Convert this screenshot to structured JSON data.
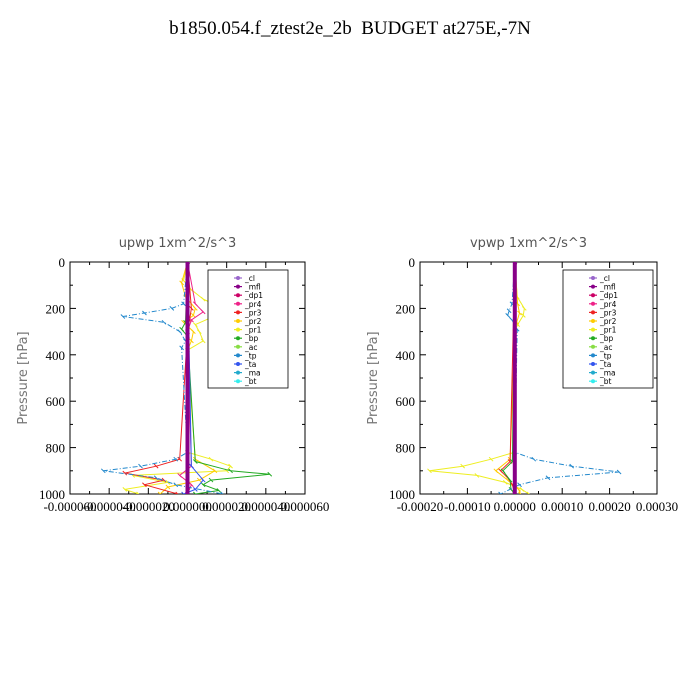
{
  "title": "b1850.054.f_ztest2e_2b  BUDGET at275E,-7N",
  "colors": {
    "_cl": "#9966cc",
    "_mfl": "#880088",
    "_dp1": "#cc0066",
    "_pr4": "#ee2288",
    "_pr3": "#ee2222",
    "_pr2": "#ffcc00",
    "_pr1": "#eeee22",
    "_bp": "#22aa22",
    "_ac": "#88dd44",
    "_tp": "#2288cc",
    "_ta": "#3355ee",
    "_ma": "#22aacc",
    "_bt": "#33eeee"
  },
  "chart_data": [
    {
      "type": "line",
      "title": "upwp   1xm^2/s^3",
      "ylabel": "Pressure [hPa]",
      "xlabel": "",
      "xlim": [
        -6e-05,
        6e-05
      ],
      "ylim": [
        1000,
        0
      ],
      "x_ticks": [
        "-0.000060",
        "-0.000040",
        "-0.000020",
        "0.000000",
        "0.000020",
        "0.000040",
        "0.000060"
      ],
      "x_tick_values": [
        -6e-05,
        -4e-05,
        -2e-05,
        0,
        2e-05,
        4e-05,
        6e-05
      ],
      "y_ticks": [
        "0",
        "200",
        "400",
        "600",
        "800",
        "1000"
      ],
      "y_tick_values": [
        0,
        200,
        400,
        600,
        800,
        1000
      ],
      "legend": [
        "_cl",
        "_mfl",
        "_dp1",
        "_pr4",
        "_pr3",
        "_pr2",
        "_pr1",
        "_bp",
        "_ac",
        "_tp",
        "_ta",
        "_ma",
        "_bt"
      ],
      "series": [
        {
          "name": "_pr1",
          "pressure": [
            0,
            80,
            120,
            160,
            200,
            240,
            270,
            300,
            340,
            380,
            820,
            850,
            880,
            900,
            920,
            950,
            980,
            1000
          ],
          "x": [
            0,
            -2e-06,
            2e-06,
            8e-06,
            1.8e-05,
            1.2e-05,
            4e-06,
            6e-06,
            8e-06,
            0,
            0,
            1.2e-05,
            2.2e-05,
            2e-05,
            -2.8e-05,
            -1e-05,
            -3.2e-05,
            -2.5e-05
          ]
        },
        {
          "name": "_pr2",
          "pressure": [
            0,
            90,
            150,
            200,
            230,
            260,
            300,
            340,
            380,
            850,
            900,
            940,
            970,
            1000
          ],
          "x": [
            0,
            -3e-06,
            -1e-06,
            4e-06,
            3e-06,
            -2e-06,
            3e-06,
            2e-06,
            0,
            4e-06,
            1.4e-05,
            6e-06,
            -1e-05,
            -1.4e-05
          ]
        },
        {
          "name": "_pr3",
          "pressure": [
            0,
            200,
            250,
            300,
            850,
            880,
            910,
            940,
            960,
            1000
          ],
          "x": [
            0,
            2e-06,
            1e-06,
            0,
            -4e-06,
            -1.6e-05,
            -3.2e-05,
            -1.2e-05,
            -2.2e-05,
            -5e-06
          ]
        },
        {
          "name": "_pr4",
          "pressure": [
            0,
            180,
            215,
            250,
            300,
            880,
            920,
            960,
            1000
          ],
          "x": [
            0,
            4e-06,
            8e-06,
            2e-06,
            0,
            2e-06,
            -4e-06,
            2e-06,
            0
          ]
        },
        {
          "name": "_bp",
          "pressure": [
            0,
            260,
            290,
            320,
            860,
            900,
            915,
            940,
            960,
            985,
            1000
          ],
          "x": [
            0,
            -1e-06,
            -3e-06,
            0,
            4e-06,
            2.2e-05,
            4.2e-05,
            1.2e-05,
            8e-06,
            1.6e-05,
            4e-06
          ]
        },
        {
          "name": "_tp",
          "pressure": [
            0,
            180,
            200,
            220,
            235,
            260,
            300,
            340,
            370,
            820,
            850,
            880,
            900,
            930,
            960,
            1000
          ],
          "x": [
            0,
            -2e-06,
            -8e-06,
            -2.2e-05,
            -3.3e-05,
            -1.2e-05,
            -4e-06,
            -1e-06,
            -3e-06,
            0,
            -6e-06,
            -2.4e-05,
            -4.3e-05,
            -1.6e-05,
            -6e-06,
            1.8e-05
          ]
        },
        {
          "name": "_ta",
          "pressure": [
            0,
            880,
            940,
            980,
            1000
          ],
          "x": [
            0,
            2e-06,
            8e-06,
            4e-06,
            -2e-06
          ]
        },
        {
          "name": "_mfl",
          "pressure": [
            0,
            1000
          ],
          "x": [
            0,
            0
          ]
        }
      ]
    },
    {
      "type": "line",
      "title": "vpwp   1xm^2/s^3",
      "ylabel": "Pressure [hPa]",
      "xlabel": "",
      "xlim": [
        -0.0002,
        0.0003
      ],
      "ylim": [
        1000,
        0
      ],
      "x_ticks": [
        "-0.00020",
        "-0.00010",
        "0.00000",
        "0.00010",
        "0.00020",
        "0.00030"
      ],
      "x_tick_values": [
        -0.0002,
        -0.0001,
        0,
        0.0001,
        0.0002,
        0.0003
      ],
      "y_ticks": [
        "0",
        "200",
        "400",
        "600",
        "800",
        "1000"
      ],
      "y_tick_values": [
        0,
        200,
        400,
        600,
        800,
        1000
      ],
      "legend": [
        "_cl",
        "_mfl",
        "_dp1",
        "_pr4",
        "_pr3",
        "_pr2",
        "_pr1",
        "_bp",
        "_ac",
        "_tp",
        "_ta",
        "_ma",
        "_bt"
      ],
      "series": [
        {
          "name": "_pr1",
          "pressure": [
            0,
            150,
            200,
            230,
            270,
            300,
            820,
            850,
            880,
            900,
            920,
            950,
            980,
            1000
          ],
          "x": [
            0,
            5e-06,
            2e-05,
            1.8e-05,
            6e-06,
            0,
            0,
            -5e-05,
            -0.00011,
            -0.00018,
            -8e-05,
            -2e-05,
            1.5e-05,
            3e-05
          ]
        },
        {
          "name": "_pr2",
          "pressure": [
            0,
            180,
            220,
            260,
            300,
            850,
            900,
            940,
            980,
            1000
          ],
          "x": [
            0,
            6e-06,
            1e-05,
            4e-06,
            0,
            -1e-05,
            -4e-05,
            -1.5e-05,
            8e-06,
            1.2e-05
          ]
        },
        {
          "name": "_pr3",
          "pressure": [
            0,
            860,
            900,
            930,
            960,
            1000
          ],
          "x": [
            0,
            -1e-05,
            -3e-05,
            -1.5e-05,
            -5e-06,
            0
          ]
        },
        {
          "name": "_bp",
          "pressure": [
            0,
            860,
            900,
            940,
            980,
            1000
          ],
          "x": [
            0,
            -5e-06,
            -2.5e-05,
            -1e-05,
            -8e-06,
            0
          ]
        },
        {
          "name": "_tp",
          "pressure": [
            0,
            180,
            210,
            230,
            250,
            290,
            820,
            850,
            880,
            905,
            930,
            960,
            1000
          ],
          "x": [
            0,
            -6e-06,
            -1.2e-05,
            -1.5e-05,
            -6e-06,
            5e-06,
            0,
            4e-05,
            0.00012,
            0.00022,
            7e-05,
            1e-05,
            -3e-05
          ]
        },
        {
          "name": "_mfl",
          "pressure": [
            0,
            1000
          ],
          "x": [
            0,
            0
          ]
        }
      ]
    }
  ]
}
